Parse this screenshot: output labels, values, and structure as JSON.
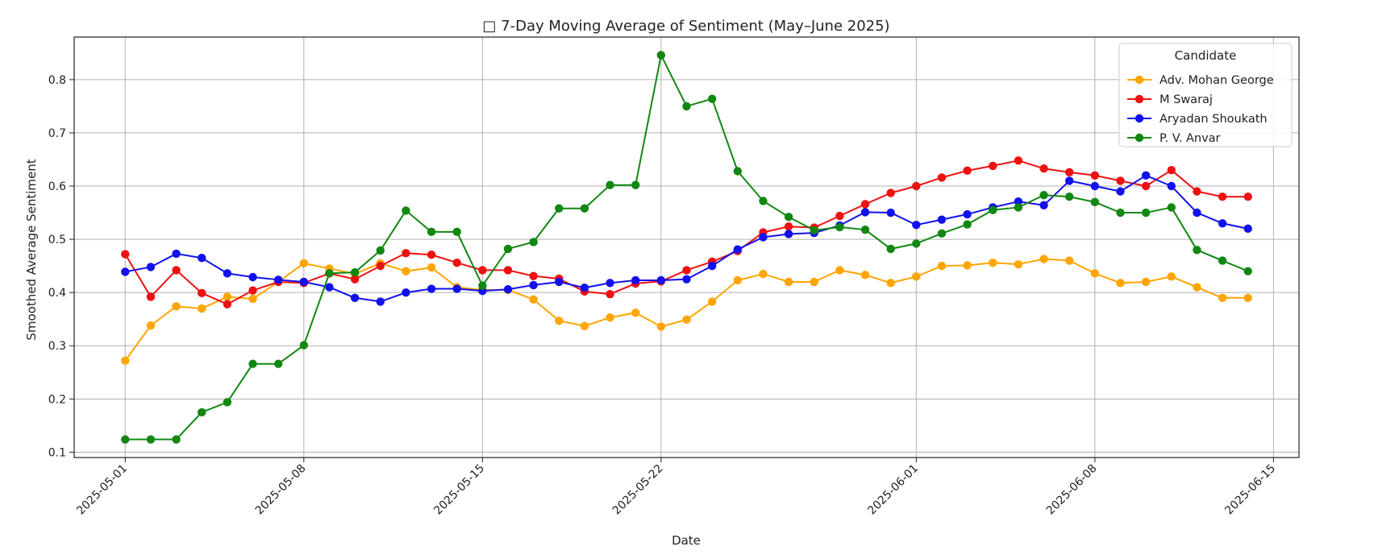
{
  "chart_data": {
    "type": "line",
    "title": "□ 7-Day Moving Average of Sentiment (May–June 2025)",
    "xlabel": "Date",
    "ylabel": "Smoothed Average Sentiment",
    "ylim": [
      0.09,
      0.88
    ],
    "xlim": [
      "2025-04-29",
      "2025-06-16"
    ],
    "grid": true,
    "legend": {
      "title": "Candidate",
      "placement": "top-right"
    },
    "x_ticks": [
      "2025-05-01",
      "2025-05-08",
      "2025-05-15",
      "2025-05-22",
      "2025-06-01",
      "2025-06-08",
      "2025-06-15"
    ],
    "y_ticks": [
      0.1,
      0.2,
      0.3,
      0.4,
      0.5,
      0.6,
      0.7,
      0.8
    ],
    "x": [
      "2025-05-01",
      "2025-05-02",
      "2025-05-03",
      "2025-05-04",
      "2025-05-05",
      "2025-05-06",
      "2025-05-07",
      "2025-05-08",
      "2025-05-09",
      "2025-05-10",
      "2025-05-11",
      "2025-05-12",
      "2025-05-13",
      "2025-05-14",
      "2025-05-15",
      "2025-05-16",
      "2025-05-17",
      "2025-05-18",
      "2025-05-19",
      "2025-05-20",
      "2025-05-21",
      "2025-05-22",
      "2025-05-23",
      "2025-05-24",
      "2025-05-25",
      "2025-05-26",
      "2025-05-27",
      "2025-05-28",
      "2025-05-29",
      "2025-05-30",
      "2025-05-31",
      "2025-06-01",
      "2025-06-02",
      "2025-06-03",
      "2025-06-04",
      "2025-06-05",
      "2025-06-06",
      "2025-06-07",
      "2025-06-08",
      "2025-06-09",
      "2025-06-10",
      "2025-06-11",
      "2025-06-12",
      "2025-06-13",
      "2025-06-14"
    ],
    "series": [
      {
        "name": "Adv. Mohan George",
        "color": "#FFA500",
        "values": [
          0.272,
          0.338,
          0.374,
          0.37,
          0.392,
          0.388,
          0.42,
          0.455,
          0.445,
          0.435,
          0.455,
          0.44,
          0.447,
          0.41,
          0.405,
          0.405,
          0.387,
          0.347,
          0.337,
          0.353,
          0.362,
          0.336,
          0.349,
          0.383,
          0.423,
          0.435,
          0.42,
          0.42,
          0.442,
          0.433,
          0.418,
          0.43,
          0.45,
          0.451,
          0.456,
          0.453,
          0.463,
          0.46,
          0.436,
          0.418,
          0.42,
          0.43,
          0.41,
          0.39,
          0.39
        ]
      },
      {
        "name": "M Swaraj",
        "color": "#EE1111",
        "values": [
          0.472,
          0.392,
          0.442,
          0.399,
          0.378,
          0.404,
          0.42,
          0.418,
          0.436,
          0.425,
          0.45,
          0.474,
          0.471,
          0.456,
          0.442,
          0.442,
          0.431,
          0.426,
          0.402,
          0.397,
          0.417,
          0.421,
          0.442,
          0.458,
          0.478,
          0.513,
          0.524,
          0.522,
          0.544,
          0.566,
          0.587,
          0.6,
          0.616,
          0.629,
          0.638,
          0.648,
          0.633,
          0.626,
          0.62,
          0.61,
          0.6,
          0.63,
          0.59,
          0.58,
          0.58
        ]
      },
      {
        "name": "Aryadan Shoukath",
        "color": "#1111EE",
        "values": [
          0.439,
          0.448,
          0.473,
          0.465,
          0.436,
          0.429,
          0.424,
          0.42,
          0.41,
          0.39,
          0.383,
          0.4,
          0.407,
          0.407,
          0.403,
          0.406,
          0.414,
          0.42,
          0.409,
          0.418,
          0.423,
          0.423,
          0.425,
          0.45,
          0.481,
          0.504,
          0.51,
          0.512,
          0.526,
          0.551,
          0.55,
          0.527,
          0.537,
          0.547,
          0.56,
          0.571,
          0.564,
          0.61,
          0.6,
          0.59,
          0.62,
          0.6,
          0.55,
          0.53,
          0.52
        ]
      },
      {
        "name": "P. V. Anvar",
        "color": "#118811",
        "values": [
          0.124,
          0.124,
          0.124,
          0.175,
          0.194,
          0.266,
          0.266,
          0.301,
          0.436,
          0.438,
          0.479,
          0.554,
          0.514,
          0.514,
          0.413,
          0.482,
          0.495,
          0.558,
          0.558,
          0.602,
          0.602,
          0.846,
          0.75,
          0.764,
          0.628,
          0.572,
          0.542,
          0.517,
          0.523,
          0.518,
          0.482,
          0.492,
          0.511,
          0.528,
          0.555,
          0.56,
          0.583,
          0.58,
          0.57,
          0.55,
          0.55,
          0.56,
          0.48,
          0.46,
          0.44
        ]
      }
    ]
  }
}
